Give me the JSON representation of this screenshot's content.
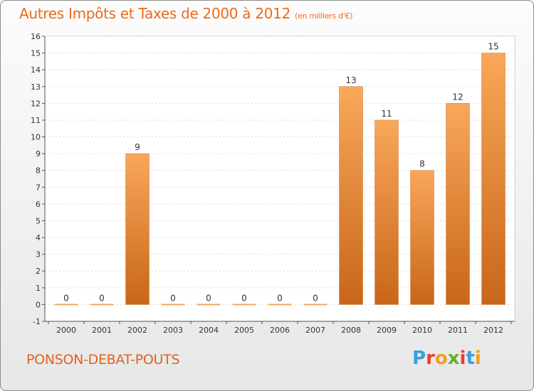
{
  "header": {
    "title": "Autres Impôts et Taxes de 2000 à 2012",
    "subtitle": "(en milliers d'€)"
  },
  "footer": {
    "town": "PONSON-DEBAT-POUTS",
    "logo": "Proxiti",
    "logo_colors": [
      "#3aa0e0",
      "#e8402a",
      "#f0a020",
      "#60b030",
      "#e8402a",
      "#3aa0e0",
      "#f0a020"
    ]
  },
  "chart_data": {
    "type": "bar",
    "categories": [
      "2000",
      "2001",
      "2002",
      "2003",
      "2004",
      "2005",
      "2006",
      "2007",
      "2008",
      "2009",
      "2010",
      "2011",
      "2012"
    ],
    "values": [
      0,
      0,
      9,
      0,
      0,
      0,
      0,
      0,
      13,
      11,
      8,
      12,
      15
    ],
    "ylim": [
      -1,
      16
    ],
    "yticks": [
      -1,
      0,
      1,
      2,
      3,
      4,
      5,
      6,
      7,
      8,
      9,
      10,
      11,
      12,
      13,
      14,
      15,
      16
    ],
    "grid": true,
    "bar_color_top": "#f9a75a",
    "bar_color_bottom": "#c8661a"
  }
}
